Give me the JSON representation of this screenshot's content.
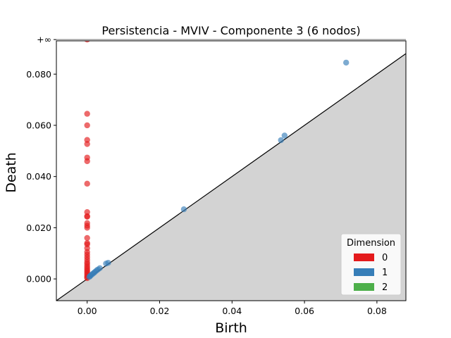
{
  "chart_data": {
    "type": "scatter",
    "title": "Persistencia - MVIV - Componente 3 (6 nodos)",
    "xlabel": "Birth",
    "ylabel": "Death",
    "xlim": [
      -0.0085,
      0.088
    ],
    "ylim": [
      -0.0085,
      0.093
    ],
    "infinity_value": 0.0935,
    "infinity_label": "+∞",
    "xticks": [
      0.0,
      0.02,
      0.04,
      0.06,
      0.08
    ],
    "xtick_labels": [
      "0.00",
      "0.02",
      "0.04",
      "0.06",
      "0.08"
    ],
    "yticks": [
      0.0,
      0.02,
      0.04,
      0.06,
      0.08
    ],
    "ytick_labels": [
      "0.000",
      "0.020",
      "0.040",
      "0.060",
      "0.080"
    ],
    "diagonal": true,
    "legend": {
      "title": "Dimension",
      "position": "lower-right",
      "entries": [
        {
          "label": "0",
          "color": "#e41a1c"
        },
        {
          "label": "1",
          "color": "#377eb8"
        },
        {
          "label": "2",
          "color": "#4daf4a"
        }
      ]
    },
    "series": [
      {
        "name": "0",
        "color": "#e41a1c",
        "points": [
          {
            "x": 0.0,
            "y": 0.0935
          },
          {
            "x": 0.0,
            "y": 0.0645
          },
          {
            "x": 0.0,
            "y": 0.06
          },
          {
            "x": 0.0,
            "y": 0.0543
          },
          {
            "x": 0.0,
            "y": 0.0527
          },
          {
            "x": 0.0,
            "y": 0.0474
          },
          {
            "x": 0.0,
            "y": 0.046
          },
          {
            "x": 0.0,
            "y": 0.0372
          },
          {
            "x": 0.0,
            "y": 0.0261
          },
          {
            "x": 0.0,
            "y": 0.0245
          },
          {
            "x": 0.0,
            "y": 0.0243
          },
          {
            "x": 0.0,
            "y": 0.0218
          },
          {
            "x": 0.0,
            "y": 0.0208
          },
          {
            "x": 0.0,
            "y": 0.02
          },
          {
            "x": 0.0,
            "y": 0.016
          },
          {
            "x": 0.0,
            "y": 0.014
          },
          {
            "x": 0.0,
            "y": 0.0135
          },
          {
            "x": 0.0,
            "y": 0.012
          },
          {
            "x": 0.0,
            "y": 0.0105
          },
          {
            "x": 0.0,
            "y": 0.0095
          },
          {
            "x": 0.0,
            "y": 0.0085
          },
          {
            "x": 0.0,
            "y": 0.0075
          },
          {
            "x": 0.0,
            "y": 0.0065
          },
          {
            "x": 0.0,
            "y": 0.0058
          },
          {
            "x": 0.0,
            "y": 0.005
          },
          {
            "x": 0.0,
            "y": 0.0043
          },
          {
            "x": 0.0,
            "y": 0.0036
          },
          {
            "x": 0.0,
            "y": 0.003
          },
          {
            "x": 0.0,
            "y": 0.0024
          },
          {
            "x": 0.0,
            "y": 0.0018
          },
          {
            "x": 0.0,
            "y": 0.0012
          },
          {
            "x": 0.0,
            "y": 0.0007
          },
          {
            "x": 0.0,
            "y": 0.0003
          }
        ]
      },
      {
        "name": "1",
        "color": "#377eb8",
        "points": [
          {
            "x": 0.0715,
            "y": 0.0845
          },
          {
            "x": 0.0545,
            "y": 0.056
          },
          {
            "x": 0.0535,
            "y": 0.0542
          },
          {
            "x": 0.0267,
            "y": 0.0272
          },
          {
            "x": 0.0058,
            "y": 0.0063
          },
          {
            "x": 0.0052,
            "y": 0.006
          },
          {
            "x": 0.0035,
            "y": 0.0042
          },
          {
            "x": 0.003,
            "y": 0.0037
          },
          {
            "x": 0.0026,
            "y": 0.0033
          },
          {
            "x": 0.0022,
            "y": 0.0028
          },
          {
            "x": 0.0019,
            "y": 0.0024
          },
          {
            "x": 0.0016,
            "y": 0.0021
          },
          {
            "x": 0.0013,
            "y": 0.0017
          },
          {
            "x": 0.001,
            "y": 0.0014
          },
          {
            "x": 0.0008,
            "y": 0.0011
          },
          {
            "x": 0.0006,
            "y": 0.0008
          }
        ]
      }
    ]
  }
}
